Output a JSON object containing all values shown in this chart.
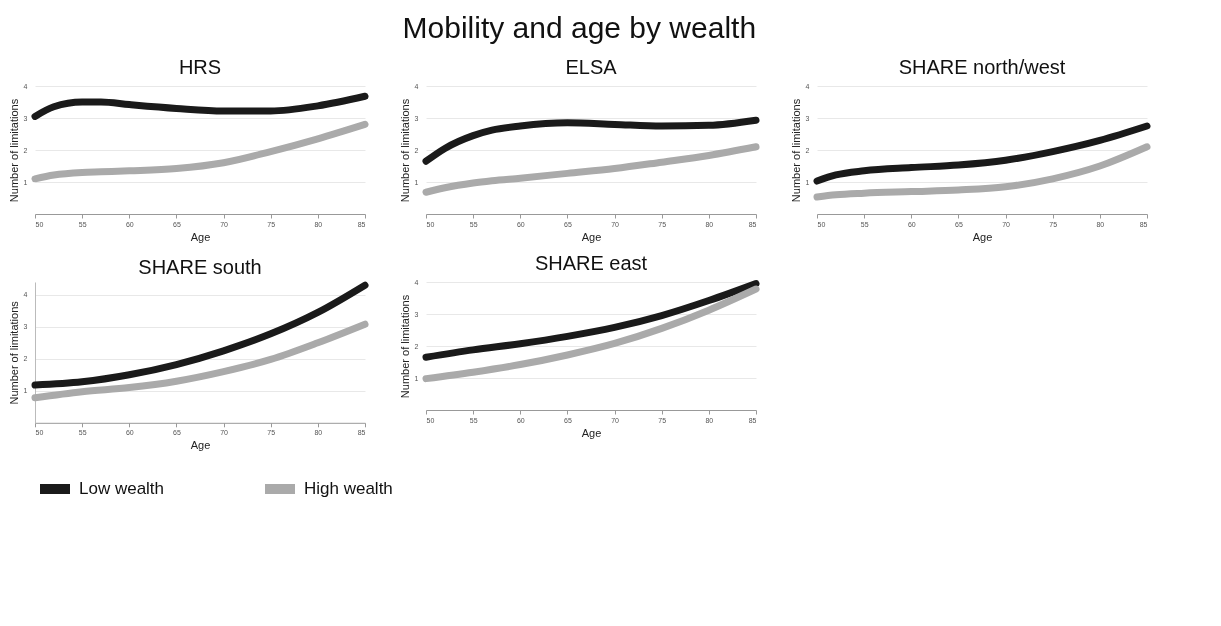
{
  "chart_data": [
    {
      "type": "line",
      "title": "HRS",
      "annotations": [
        "Mobility and age by wealth"
      ],
      "xlabel": "Age",
      "ylabel": "Number of limitations",
      "xlim": [
        50,
        85
      ],
      "xticks": [
        50,
        55,
        60,
        65,
        70,
        75,
        80,
        85
      ],
      "ylim": [
        0,
        4
      ],
      "yticks": [
        1,
        2,
        3,
        4
      ],
      "grid": "y",
      "legend": "bottom",
      "marker": "none",
      "line_style": "solid",
      "x": [
        50,
        52,
        55,
        57,
        60,
        65,
        70,
        75,
        80,
        85
      ],
      "series": [
        {
          "name": "Low wealth",
          "color": "#1a1a1a",
          "values": [
            3.05,
            3.35,
            3.5,
            3.5,
            3.42,
            3.3,
            3.22,
            3.22,
            3.38,
            3.68
          ]
        },
        {
          "name": "High wealth",
          "color": "#aaaaaa",
          "values": [
            1.1,
            1.22,
            1.3,
            1.32,
            1.35,
            1.42,
            1.6,
            1.95,
            2.35,
            2.8
          ]
        }
      ]
    },
    {
      "type": "line",
      "title": "ELSA",
      "xlabel": "Age",
      "ylabel": "Number of limitations",
      "xlim": [
        50,
        85
      ],
      "xticks": [
        50,
        55,
        60,
        65,
        70,
        75,
        80,
        85
      ],
      "ylim": [
        0,
        4
      ],
      "yticks": [
        1,
        2,
        3,
        4
      ],
      "grid": "y",
      "legend": "bottom",
      "marker": "none",
      "line_style": "solid",
      "x": [
        50,
        52,
        55,
        57,
        60,
        65,
        70,
        75,
        80,
        85
      ],
      "series": [
        {
          "name": "Low wealth",
          "color": "#1a1a1a",
          "values": [
            1.65,
            2.05,
            2.45,
            2.62,
            2.75,
            2.85,
            2.8,
            2.75,
            2.77,
            2.93
          ]
        },
        {
          "name": "High wealth",
          "color": "#aaaaaa",
          "values": [
            0.68,
            0.82,
            0.97,
            1.04,
            1.12,
            1.27,
            1.42,
            1.62,
            1.83,
            2.1
          ]
        }
      ]
    },
    {
      "type": "line",
      "title": "SHARE north/west",
      "xlabel": "Age",
      "ylabel": "Number of limitations",
      "xlim": [
        50,
        85
      ],
      "xticks": [
        50,
        55,
        60,
        65,
        70,
        75,
        80,
        85
      ],
      "ylim": [
        0,
        4
      ],
      "yticks": [
        1,
        2,
        3,
        4
      ],
      "grid": "y",
      "legend": "bottom",
      "marker": "none",
      "line_style": "solid",
      "x": [
        50,
        52,
        55,
        60,
        65,
        70,
        75,
        80,
        85
      ],
      "series": [
        {
          "name": "Low wealth",
          "color": "#1a1a1a",
          "values": [
            1.03,
            1.22,
            1.35,
            1.45,
            1.53,
            1.68,
            1.95,
            2.3,
            2.75
          ]
        },
        {
          "name": "High wealth",
          "color": "#aaaaaa",
          "values": [
            0.53,
            0.6,
            0.65,
            0.7,
            0.75,
            0.85,
            1.1,
            1.5,
            2.1
          ]
        }
      ]
    },
    {
      "type": "line",
      "title": "SHARE south",
      "xlabel": "Age",
      "ylabel": "Number of limitations",
      "xlim": [
        50,
        85
      ],
      "xticks": [
        50,
        55,
        60,
        65,
        70,
        75,
        80,
        85
      ],
      "ylim": [
        0,
        4.4
      ],
      "yticks": [
        1,
        2,
        3,
        4
      ],
      "grid": "y",
      "legend": "bottom",
      "marker": "none",
      "line_style": "solid",
      "x": [
        50,
        55,
        60,
        65,
        70,
        75,
        80,
        85
      ],
      "series": [
        {
          "name": "Low wealth",
          "color": "#1a1a1a",
          "values": [
            1.18,
            1.28,
            1.5,
            1.82,
            2.25,
            2.78,
            3.45,
            4.3
          ]
        },
        {
          "name": "High wealth",
          "color": "#aaaaaa",
          "values": [
            0.78,
            0.97,
            1.1,
            1.3,
            1.6,
            1.98,
            2.5,
            3.08
          ]
        }
      ]
    },
    {
      "type": "line",
      "title": "SHARE east",
      "xlabel": "Age",
      "ylabel": "Number of limitations",
      "xlim": [
        50,
        85
      ],
      "xticks": [
        50,
        55,
        60,
        65,
        70,
        75,
        80,
        85
      ],
      "ylim": [
        0,
        4
      ],
      "yticks": [
        1,
        2,
        3,
        4
      ],
      "grid": "y",
      "legend": "bottom",
      "marker": "none",
      "line_style": "solid",
      "x": [
        50,
        55,
        60,
        65,
        70,
        75,
        80,
        85
      ],
      "series": [
        {
          "name": "Low wealth",
          "color": "#1a1a1a",
          "values": [
            1.65,
            1.88,
            2.07,
            2.3,
            2.58,
            2.95,
            3.42,
            3.95
          ]
        },
        {
          "name": "High wealth",
          "color": "#aaaaaa",
          "values": [
            0.98,
            1.18,
            1.42,
            1.72,
            2.08,
            2.55,
            3.12,
            3.78
          ]
        }
      ]
    }
  ]
}
